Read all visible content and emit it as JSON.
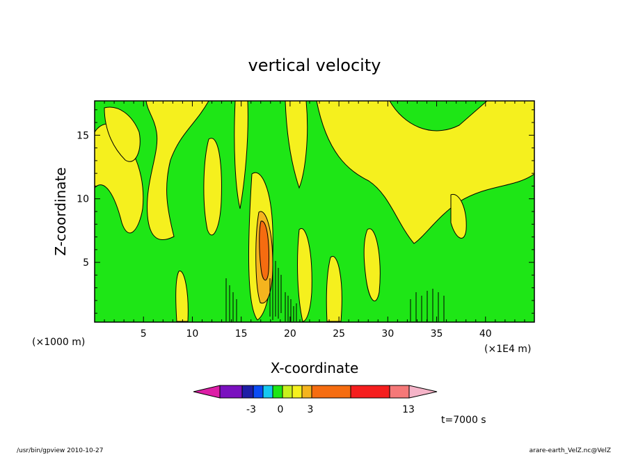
{
  "chart_data": {
    "type": "heatmap",
    "title": "vertical velocity",
    "xlabel": "X-coordinate",
    "ylabel": "Z-coordinate",
    "x_scale_note": "(×1000 m)",
    "x_scale_note_right": "(×1E4 m)",
    "xlim": [
      0,
      45
    ],
    "ylim": [
      0.3,
      17.7
    ],
    "x_ticks": [
      "5",
      "10",
      "15",
      "20",
      "25",
      "30",
      "35",
      "40"
    ],
    "y_ticks": [
      "5",
      "10",
      "15"
    ],
    "colorbar": {
      "colors": [
        "#dd1ea6",
        "#7a10bf",
        "#1e1ea6",
        "#0a4cf5",
        "#16c8f0",
        "#1ee616",
        "#c8f01e",
        "#f5f01e",
        "#f5b41e",
        "#f56c10",
        "#f51e1e",
        "#f57878",
        "#f5b4c8"
      ],
      "labels": [
        "-3",
        "0",
        "3",
        "13"
      ]
    },
    "time_label": "t=7000 s",
    "footer_left": "/usr/bin/gpview   2010-10-27",
    "footer_right": "arare-earth_VelZ.nc@VelZ"
  }
}
